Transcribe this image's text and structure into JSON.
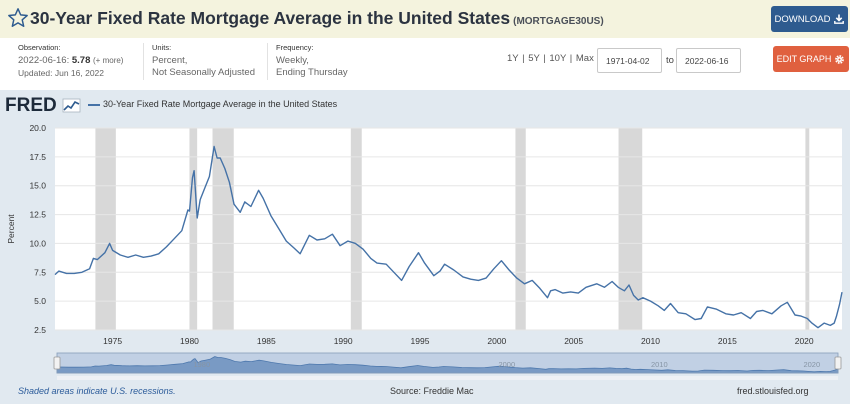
{
  "header": {
    "title": "30-Year Fixed Rate Mortgage Average in the United States",
    "series_id": "(MORTGAGE30US)",
    "download_label": "DOWNLOAD"
  },
  "meta": {
    "observation_label": "Observation:",
    "observation_date": "2022-06-16:",
    "observation_value": "5.78",
    "observation_more": "(+ more)",
    "updated": "Updated: Jun 16, 2022",
    "units_label": "Units:",
    "units_line1": "Percent,",
    "units_line2": "Not Seasonally Adjusted",
    "frequency_label": "Frequency:",
    "frequency_line1": "Weekly,",
    "frequency_line2": "Ending Thursday"
  },
  "controls": {
    "ranges": "1Y | 5Y | 10Y | Max",
    "start_date": "1971-04-02",
    "to_label": "to",
    "end_date": "2022-06-16",
    "edit_label": "EDIT GRAPH"
  },
  "footer": {
    "note": "Shaded areas indicate U.S. recessions.",
    "source": "Source: Freddie Mac",
    "url": "fred.stlouisfed.org"
  },
  "colors": {
    "line": "#4572a7",
    "recession": "#d8d8d8",
    "header_bg": "#f4f3de",
    "download": "#2e5b8f",
    "edit": "#e0603f"
  },
  "icons": {
    "favorite": "star-icon",
    "download": "download-icon",
    "edit": "gear-icon",
    "logo": "fred-logo"
  },
  "chart_data": {
    "type": "line",
    "logo_text": "FRED",
    "ylabel": "Percent",
    "xlim": [
      1971.25,
      2022.46
    ],
    "ylim": [
      2.5,
      20.0
    ],
    "yticks": [
      "2.5",
      "5.0",
      "7.5",
      "10.0",
      "12.5",
      "15.0",
      "17.5",
      "20.0"
    ],
    "xticks": [
      "1975",
      "1980",
      "1985",
      "1990",
      "1995",
      "2000",
      "2005",
      "2010",
      "2015",
      "2020"
    ],
    "navigator_ticks": [
      "1980",
      "2000",
      "2010",
      "2020"
    ],
    "grid": true,
    "legend": "top-left",
    "recessions": [
      [
        1973.88,
        1975.21
      ],
      [
        1980.0,
        1980.5
      ],
      [
        1981.5,
        1982.88
      ],
      [
        1990.5,
        1991.21
      ],
      [
        2001.21,
        2001.88
      ],
      [
        2007.92,
        2009.46
      ],
      [
        2020.08,
        2020.33
      ]
    ],
    "series": [
      {
        "name": "30-Year Fixed Rate Mortgage Average in the United States",
        "x": [
          1971.25,
          1971.5,
          1972.0,
          1972.5,
          1973.0,
          1973.5,
          1973.75,
          1974.0,
          1974.5,
          1974.8,
          1975.0,
          1975.5,
          1976.0,
          1976.5,
          1977.0,
          1977.5,
          1978.0,
          1978.5,
          1979.0,
          1979.5,
          1979.9,
          1980.0,
          1980.2,
          1980.3,
          1980.5,
          1980.7,
          1981.0,
          1981.3,
          1981.6,
          1981.8,
          1982.0,
          1982.3,
          1982.6,
          1982.9,
          1983.3,
          1983.6,
          1984.0,
          1984.5,
          1984.8,
          1985.3,
          1985.8,
          1986.3,
          1986.8,
          1987.2,
          1987.8,
          1988.3,
          1988.8,
          1989.3,
          1989.8,
          1990.3,
          1990.8,
          1991.3,
          1991.8,
          1992.2,
          1992.8,
          1993.3,
          1993.8,
          1994.3,
          1994.9,
          1995.3,
          1995.9,
          1996.3,
          1996.6,
          1997.2,
          1997.8,
          1998.3,
          1998.8,
          1999.3,
          1999.8,
          2000.3,
          2000.8,
          2001.3,
          2001.8,
          2002.3,
          2002.8,
          2003.3,
          2003.5,
          2003.8,
          2004.3,
          2004.8,
          2005.3,
          2005.8,
          2006.5,
          2007.0,
          2007.5,
          2007.9,
          2008.3,
          2008.6,
          2008.9,
          2009.2,
          2009.5,
          2010.0,
          2010.5,
          2010.9,
          2011.3,
          2011.8,
          2012.3,
          2012.9,
          2013.3,
          2013.7,
          2014.3,
          2014.9,
          2015.4,
          2015.9,
          2016.5,
          2016.9,
          2017.3,
          2017.9,
          2018.5,
          2018.9,
          2019.4,
          2019.8,
          2020.2,
          2020.5,
          2020.9,
          2021.3,
          2021.7,
          2021.95,
          2022.1,
          2022.3,
          2022.46
        ],
        "values": [
          7.3,
          7.6,
          7.4,
          7.4,
          7.5,
          7.8,
          8.7,
          8.6,
          9.2,
          10.0,
          9.4,
          9.0,
          8.8,
          9.0,
          8.8,
          8.9,
          9.1,
          9.7,
          10.4,
          11.1,
          12.9,
          12.8,
          15.7,
          16.3,
          12.2,
          13.8,
          14.8,
          15.8,
          18.4,
          17.4,
          17.4,
          16.5,
          15.3,
          13.4,
          12.7,
          13.6,
          13.2,
          14.6,
          13.9,
          12.4,
          11.3,
          10.2,
          9.6,
          9.1,
          10.7,
          10.3,
          10.4,
          10.8,
          9.8,
          10.2,
          10.0,
          9.5,
          8.7,
          8.3,
          8.2,
          7.5,
          6.8,
          8.0,
          9.2,
          8.3,
          7.2,
          7.6,
          8.2,
          7.7,
          7.1,
          6.9,
          6.8,
          7.0,
          7.8,
          8.5,
          7.7,
          7.0,
          6.5,
          6.8,
          6.1,
          5.3,
          5.9,
          6.0,
          5.7,
          5.8,
          5.7,
          6.2,
          6.5,
          6.2,
          6.7,
          6.2,
          5.9,
          6.4,
          5.5,
          5.1,
          5.3,
          5.0,
          4.6,
          4.2,
          4.8,
          4.0,
          3.9,
          3.4,
          3.5,
          4.5,
          4.3,
          3.9,
          3.8,
          4.0,
          3.5,
          4.1,
          4.2,
          3.9,
          4.6,
          4.9,
          3.8,
          3.7,
          3.5,
          3.1,
          2.7,
          3.1,
          2.9,
          3.1,
          3.7,
          4.7,
          5.78
        ]
      }
    ]
  }
}
